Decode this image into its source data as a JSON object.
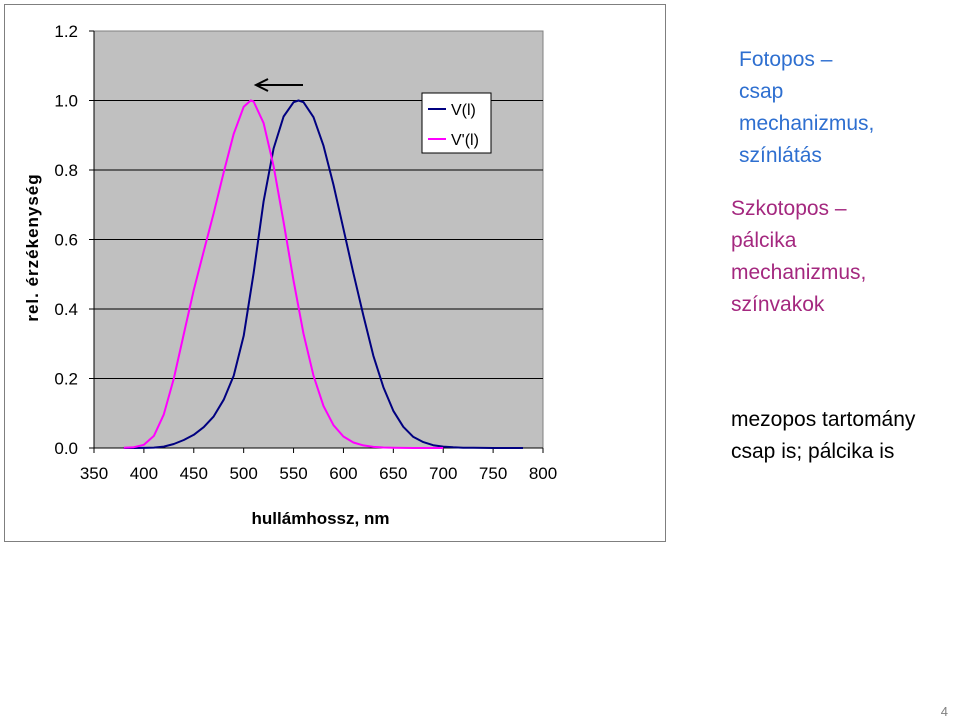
{
  "colors": {
    "plot_background": "#c0c0c0",
    "photopic": "#000080",
    "scotopic": "#ff00ff",
    "grid": "#000000",
    "fotopos_text": "#2e6fd0",
    "szkotopos_text": "#a4287f"
  },
  "chart_data": {
    "type": "line",
    "title": "",
    "xlabel": "hullámhossz, nm",
    "ylabel": "rel. érzékenység",
    "xlim": [
      350,
      800
    ],
    "ylim": [
      0,
      1.2
    ],
    "x_ticks": [
      "350",
      "400",
      "450",
      "500",
      "550",
      "600",
      "650",
      "700",
      "750",
      "800"
    ],
    "y_ticks": [
      "0.0",
      "0.2",
      "0.4",
      "0.6",
      "0.8",
      "1.0",
      "1.2"
    ],
    "grid": "horizontal",
    "legend_position": "top-right",
    "annotation": "arrow pointing left",
    "series": [
      {
        "name": "V(l)",
        "x": [
          380,
          390,
          400,
          410,
          420,
          430,
          440,
          450,
          460,
          470,
          480,
          490,
          500,
          510,
          520,
          530,
          540,
          550,
          555,
          560,
          570,
          580,
          590,
          600,
          610,
          620,
          630,
          640,
          650,
          660,
          670,
          680,
          690,
          700,
          710,
          720,
          730,
          740,
          750,
          760,
          770,
          780
        ],
        "values": [
          0.0,
          0.0001,
          0.0004,
          0.0012,
          0.004,
          0.0116,
          0.023,
          0.038,
          0.06,
          0.091,
          0.139,
          0.208,
          0.323,
          0.503,
          0.71,
          0.862,
          0.954,
          0.995,
          1.0,
          0.995,
          0.952,
          0.87,
          0.757,
          0.631,
          0.503,
          0.381,
          0.265,
          0.175,
          0.107,
          0.061,
          0.032,
          0.017,
          0.0082,
          0.0041,
          0.0021,
          0.001,
          0.0005,
          0.0002,
          0.0001,
          0.0,
          0.0,
          0.0
        ]
      },
      {
        "name": "V'(l)",
        "x": [
          380,
          390,
          400,
          410,
          420,
          430,
          440,
          450,
          460,
          470,
          480,
          490,
          500,
          507,
          510,
          520,
          530,
          540,
          550,
          560,
          570,
          580,
          590,
          600,
          610,
          620,
          630,
          640,
          650,
          660,
          670,
          680,
          690,
          700
        ],
        "values": [
          0.0006,
          0.0022,
          0.0093,
          0.0348,
          0.0966,
          0.1998,
          0.3281,
          0.455,
          0.567,
          0.676,
          0.793,
          0.904,
          0.982,
          1.0,
          0.997,
          0.935,
          0.811,
          0.65,
          0.481,
          0.329,
          0.208,
          0.121,
          0.0655,
          0.0332,
          0.0159,
          0.0074,
          0.0033,
          0.0015,
          0.0007,
          0.0003,
          0.0001,
          0.0001,
          0.0,
          0.0
        ]
      }
    ]
  },
  "text_blocks": {
    "fotopos": [
      "Fotopos –",
      "csap",
      "mechanizmus,",
      "színlátás"
    ],
    "szkotopos": [
      "Szkotopos –",
      "pálcika",
      "mechanizmus,",
      "színvakok"
    ],
    "mezopos": [
      "mezopos tartomány",
      "csap is; pálcika is"
    ]
  },
  "page_number": "4"
}
